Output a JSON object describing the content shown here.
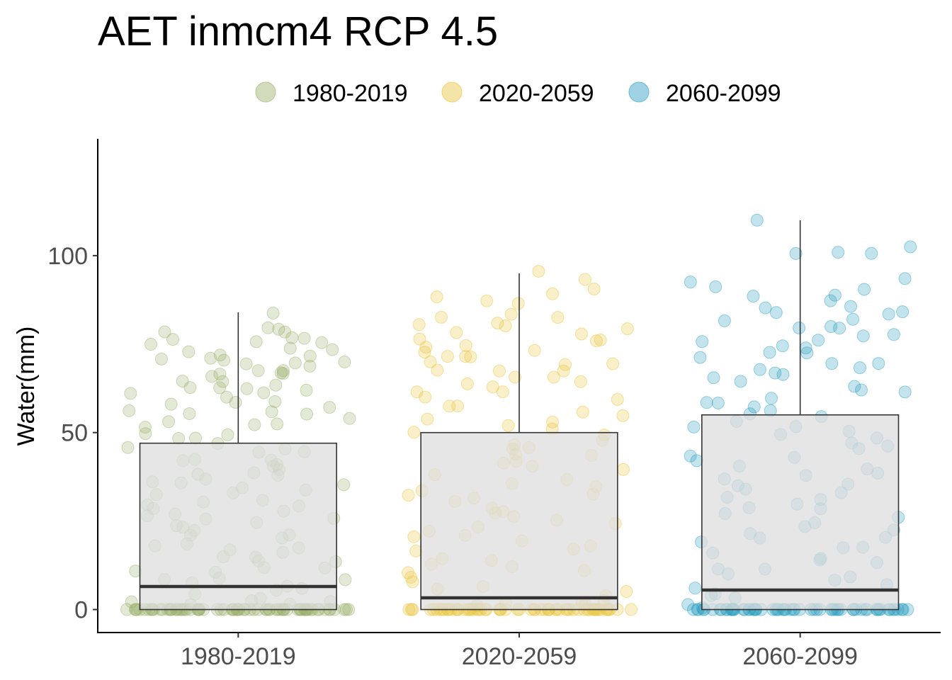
{
  "chart_data": {
    "type": "box",
    "title": "AET inmcm4 RCP 4.5",
    "xlabel": "",
    "ylabel": "Water(mm)",
    "ylim": [
      -6.5,
      133
    ],
    "yticks": [
      0,
      50,
      100
    ],
    "categories": [
      "1980-2019",
      "2020-2059",
      "2060-2099"
    ],
    "legend": {
      "position": "top",
      "entries": [
        "1980-2019",
        "2020-2059",
        "2060-2099"
      ]
    },
    "colors": {
      "1980-2019": "#9caf6a",
      "2020-2059": "#e8c43c",
      "2060-2099": "#2a9ec0"
    },
    "box_fill": "#dedede",
    "grid": false,
    "series": [
      {
        "name": "1980-2019",
        "q1": 0,
        "median": 6.5,
        "q3": 47,
        "whisker_low": 0,
        "whisker_high": 84
      },
      {
        "name": "2020-2059",
        "q1": 0,
        "median": 3.3,
        "q3": 50,
        "whisker_low": 0,
        "whisker_high": 95
      },
      {
        "name": "2060-2099",
        "q1": 0,
        "median": 5.5,
        "q3": 55,
        "whisker_low": 0,
        "whisker_high": 110
      }
    ],
    "points": {
      "zero_fraction": 0.38,
      "1980-2019": [
        84,
        79,
        79,
        78,
        78,
        77,
        77,
        76,
        76,
        75,
        75,
        74,
        73,
        73,
        72,
        72,
        71,
        71,
        70,
        70,
        70,
        69,
        69,
        68,
        68,
        67,
        67,
        66,
        66,
        65,
        65,
        64,
        63,
        63,
        62,
        62,
        61,
        61,
        60,
        59,
        58,
        58,
        57,
        56,
        56,
        55,
        55,
        54,
        53,
        52,
        52,
        51,
        50,
        49,
        48,
        48,
        47,
        46,
        45,
        44,
        44,
        43,
        42,
        42,
        41,
        40,
        40,
        39,
        38,
        38,
        37,
        36,
        36,
        35,
        34,
        34,
        33,
        32,
        31,
        31,
        30,
        29,
        29,
        28,
        27,
        26,
        26,
        25,
        24,
        24,
        23,
        22,
        21,
        21,
        20,
        19,
        18,
        18,
        17,
        16,
        15,
        15,
        14,
        13,
        12,
        12,
        11,
        10,
        9,
        9,
        8,
        7,
        6,
        6,
        5,
        4,
        3,
        3,
        2,
        2,
        1,
        1
      ],
      "2020-2059": [
        95,
        93,
        90,
        89,
        88,
        87,
        86,
        84,
        83,
        82,
        81,
        80,
        80,
        79,
        78,
        78,
        77,
        76,
        76,
        75,
        74,
        73,
        73,
        72,
        72,
        71,
        70,
        70,
        69,
        68,
        68,
        67,
        66,
        66,
        65,
        64,
        63,
        62,
        61,
        60,
        59,
        58,
        57,
        56,
        55,
        54,
        53,
        52,
        51,
        50,
        49,
        48,
        47,
        46,
        45,
        44,
        43,
        42,
        41,
        40,
        39,
        38,
        37,
        36,
        35,
        34,
        33,
        32,
        31,
        30,
        29,
        28,
        27,
        26,
        25,
        24,
        23,
        22,
        21,
        20,
        19,
        18,
        17,
        16,
        15,
        14,
        13,
        12,
        11,
        10,
        9,
        8,
        7,
        6,
        5,
        4,
        3,
        2,
        2,
        1,
        1
      ],
      "2060-2099": [
        110,
        102,
        101,
        101,
        100,
        93,
        92,
        91,
        90,
        89,
        88,
        87,
        86,
        85,
        84,
        84,
        83,
        82,
        81,
        80,
        80,
        79,
        78,
        77,
        76,
        76,
        75,
        74,
        73,
        72,
        71,
        70,
        69,
        68,
        68,
        67,
        66,
        65,
        64,
        63,
        62,
        61,
        60,
        59,
        58,
        57,
        56,
        55,
        54,
        53,
        52,
        51,
        50,
        49,
        48,
        47,
        46,
        45,
        44,
        43,
        42,
        41,
        40,
        39,
        38,
        37,
        36,
        35,
        34,
        33,
        32,
        31,
        30,
        29,
        28,
        27,
        26,
        25,
        24,
        23,
        22,
        21,
        20,
        19,
        18,
        17,
        16,
        15,
        14,
        13,
        12,
        11,
        10,
        9,
        8,
        7,
        6,
        5,
        4,
        3,
        2,
        1
      ]
    }
  }
}
